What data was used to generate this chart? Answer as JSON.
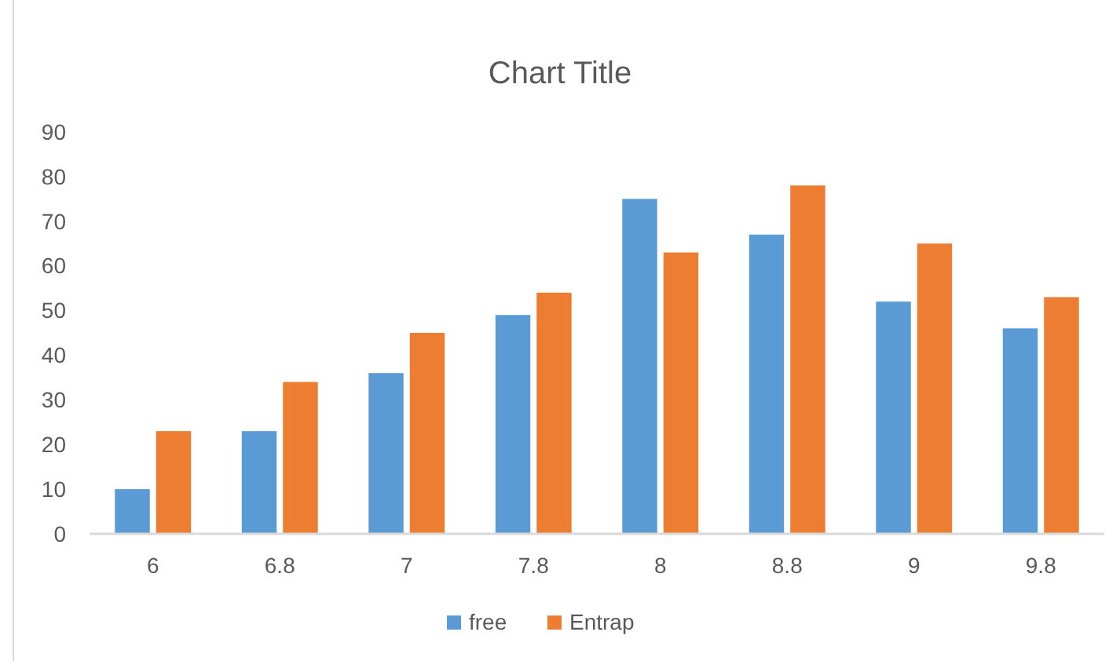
{
  "chart_data": {
    "type": "bar",
    "title": "Chart Title",
    "categories": [
      "6",
      "6.8",
      "7",
      "7.8",
      "8",
      "8.8",
      "9",
      "9.8"
    ],
    "series": [
      {
        "name": "free",
        "color": "#5b9bd5",
        "values": [
          10,
          23,
          36,
          49,
          75,
          67,
          52,
          46
        ]
      },
      {
        "name": "Entrap",
        "color": "#ed7d31",
        "values": [
          23,
          34,
          45,
          54,
          63,
          78,
          65,
          53
        ]
      }
    ],
    "ylim": [
      0,
      90
    ],
    "yticks": [
      0,
      10,
      20,
      30,
      40,
      50,
      60,
      70,
      80,
      90
    ],
    "grid": false,
    "legend": "bottom"
  }
}
